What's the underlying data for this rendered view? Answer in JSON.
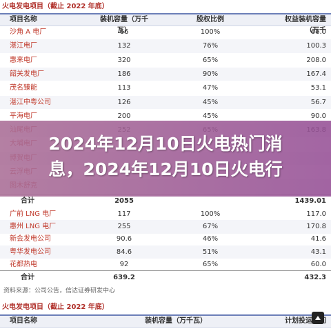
{
  "table1": {
    "title": "火电发电项目（截止 2022 年底）",
    "headers": [
      "项目名称",
      "装机容量（万千瓦）",
      "股权比例",
      "权益装机容量（万千"
    ],
    "rows": [
      [
        "沙角 A 电厂",
        "66",
        "100%",
        "66.0"
      ],
      [
        "湛江电厂",
        "132",
        "76%",
        "100.3"
      ],
      [
        "惠来电厂",
        "320",
        "65%",
        "208.0"
      ],
      [
        "韶关发电厂",
        "186",
        "90%",
        "167.4"
      ],
      [
        "茂名臻能",
        "113",
        "47%",
        "53.1"
      ],
      [
        "湛江中粤公司",
        "126",
        "45%",
        "56.7"
      ],
      [
        "平海电厂",
        "200",
        "45%",
        "90.0"
      ],
      [
        "汕尾电厂",
        "252",
        "65%",
        "163.8"
      ],
      [
        "大埔电厂",
        "",
        "",
        ""
      ],
      [
        "博贺电厂",
        "",
        "",
        ""
      ],
      [
        "云浮电厂",
        "",
        "",
        ""
      ],
      [
        "图木舒克",
        "",
        "",
        ""
      ]
    ],
    "total": [
      "合计",
      "2055",
      "",
      "1439.01"
    ]
  },
  "table2": {
    "rows": [
      [
        "广前 LNG 电厂",
        "117",
        "100%",
        "117.0"
      ],
      [
        "惠州 LNG 电厂",
        "255",
        "67%",
        "170.8"
      ],
      [
        "新会发电公司",
        "90.6",
        "46%",
        "41.6"
      ],
      [
        "粤华发电公司",
        "84.6",
        "51%",
        "43.1"
      ],
      [
        "花都热电",
        "92",
        "65%",
        "60.0"
      ]
    ],
    "total": [
      "合计",
      "639.2",
      "",
      "432.3"
    ]
  },
  "source_note": "资料来源：公司公告，信达证券研发中心",
  "table3": {
    "title": "火电发电项目（截止 2022 年底）",
    "headers": [
      "项目名称",
      "装机容量（万千瓦）",
      "",
      "计划投运时间"
    ]
  },
  "headline": {
    "line1": "2024年12月10日火电热门消",
    "line2": "息，2024年12月10日火电行"
  },
  "colors": {
    "accent": "#b0302a",
    "overlay": "#9a5c96",
    "header_border": "#6b7fb8"
  },
  "icons": {
    "scroll_top": "arrow-up-icon"
  }
}
